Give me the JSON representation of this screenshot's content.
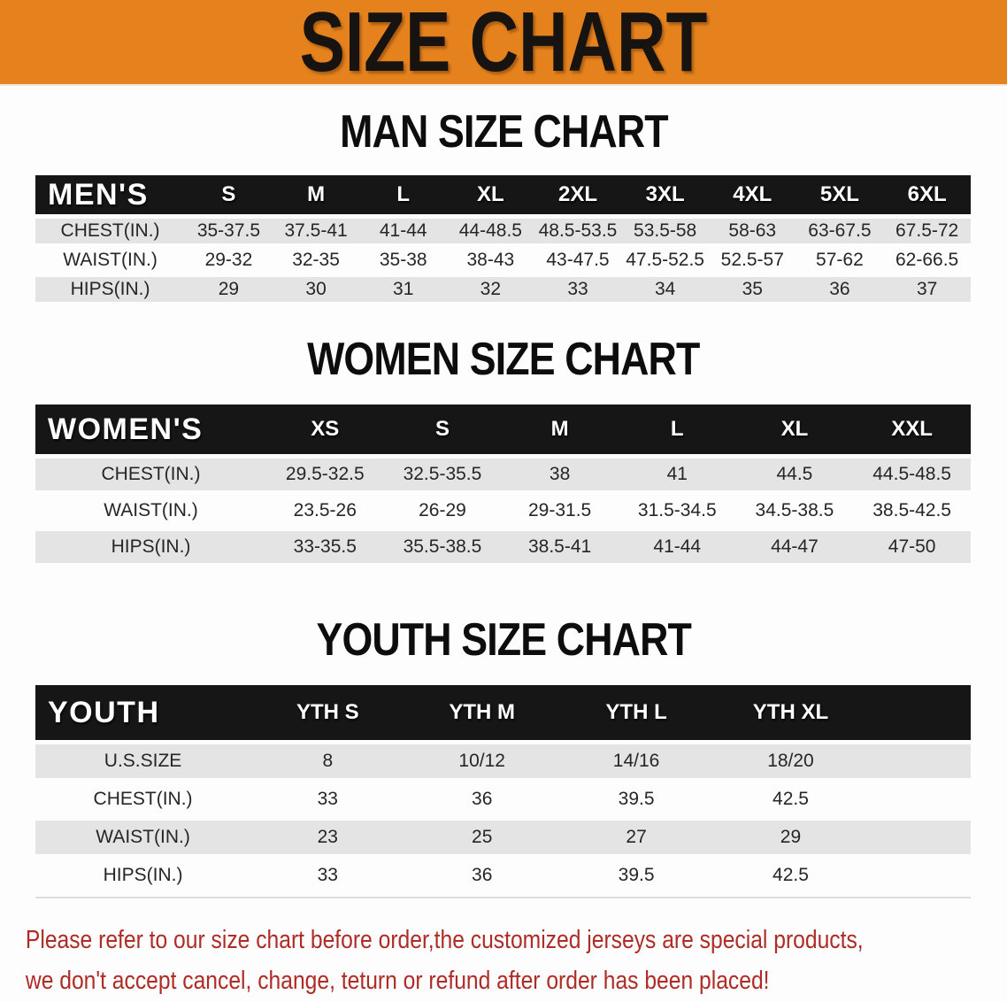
{
  "banner": {
    "title": "SIZE CHART"
  },
  "colors": {
    "banner_bg": "#e5821d",
    "banner_text": "#171310",
    "table_header_bg": "#161616",
    "table_header_text": "#ffffff",
    "row_alt_bg": "#e4e4e4",
    "disclaimer_text": "#af2b26"
  },
  "sections": [
    {
      "id": "men",
      "heading": "MAN SIZE CHART",
      "table": {
        "label": "MEN'S",
        "columns": [
          "S",
          "M",
          "L",
          "XL",
          "2XL",
          "3XL",
          "4XL",
          "5XL",
          "6XL"
        ],
        "rows": [
          {
            "label": "CHEST(IN.)",
            "values": [
              "35-37.5",
              "37.5-41",
              "41-44",
              "44-48.5",
              "48.5-53.5",
              "53.5-58",
              "58-63",
              "63-67.5",
              "67.5-72"
            ]
          },
          {
            "label": "WAIST(IN.)",
            "values": [
              "29-32",
              "32-35",
              "35-38",
              "38-43",
              "43-47.5",
              "47.5-52.5",
              "52.5-57",
              "57-62",
              "62-66.5"
            ]
          },
          {
            "label": "HIPS(IN.)",
            "values": [
              "29",
              "30",
              "31",
              "32",
              "33",
              "34",
              "35",
              "36",
              "37"
            ]
          }
        ]
      }
    },
    {
      "id": "women",
      "heading": "WOMEN SIZE CHART",
      "table": {
        "label": "WOMEN'S",
        "columns": [
          "XS",
          "S",
          "M",
          "L",
          "XL",
          "XXL"
        ],
        "rows": [
          {
            "label": "CHEST(IN.)",
            "values": [
              "29.5-32.5",
              "32.5-35.5",
              "38",
              "41",
              "44.5",
              "44.5-48.5"
            ]
          },
          {
            "label": "WAIST(IN.)",
            "values": [
              "23.5-26",
              "26-29",
              "29-31.5",
              "31.5-34.5",
              "34.5-38.5",
              "38.5-42.5"
            ]
          },
          {
            "label": "HIPS(IN.)",
            "values": [
              "33-35.5",
              "35.5-38.5",
              "38.5-41",
              "41-44",
              "44-47",
              "47-50"
            ]
          }
        ]
      }
    },
    {
      "id": "youth",
      "heading": "YOUTH SIZE CHART",
      "table": {
        "label": "YOUTH",
        "columns": [
          "YTH S",
          "YTH M",
          "YTH L",
          "YTH XL"
        ],
        "rows": [
          {
            "label": "U.S.SIZE",
            "values": [
              "8",
              "10/12",
              "14/16",
              "18/20"
            ]
          },
          {
            "label": "CHEST(IN.)",
            "values": [
              "33",
              "36",
              "39.5",
              "42.5"
            ]
          },
          {
            "label": "WAIST(IN.)",
            "values": [
              "23",
              "25",
              "27",
              "29"
            ]
          },
          {
            "label": "HIPS(IN.)",
            "values": [
              "33",
              "36",
              "39.5",
              "42.5"
            ]
          }
        ]
      }
    }
  ],
  "footer": {
    "line1": "Please refer to our size chart before order,the customized jerseys are special products,",
    "line2": "we don't accept cancel, change, teturn or refund after order has been placed!"
  }
}
